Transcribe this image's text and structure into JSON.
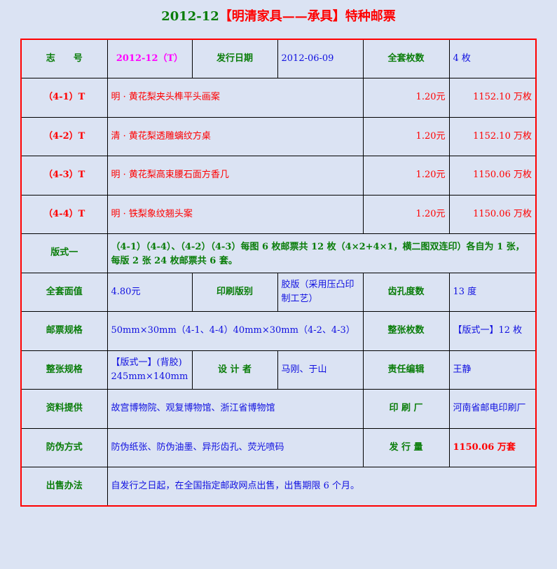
{
  "title": {
    "issue": "2012-12",
    "name": "【明清家具——承具】特种邮票"
  },
  "header_row": {
    "id_label": "志　　号",
    "id_value": "2012-12（T）",
    "date_label": "发行日期",
    "date_value": "2012-06-09",
    "count_label": "全套枚数",
    "count_value": "4 枚"
  },
  "stamps": [
    {
      "code": "（4-1）T",
      "name": "明 · 黄花梨夹头榫平头画案",
      "face": "1.20元",
      "qty": "1152.10 万枚"
    },
    {
      "code": "（4-2）T",
      "name": "清 · 黄花梨透雕螭纹方桌",
      "face": "1.20元",
      "qty": "1152.10 万枚"
    },
    {
      "code": "（4-3）T",
      "name": "明 · 黄花梨高束腰石面方香几",
      "face": "1.20元",
      "qty": "1150.06 万枚"
    },
    {
      "code": "（4-4）T",
      "name": "明 · 铁梨象纹翘头案",
      "face": "1.20元",
      "qty": "1150.06 万枚"
    }
  ],
  "format": {
    "label": "版式一",
    "value": "（4-1）（4-4）、（4-2）（4-3）每图 6 枚邮票共 12 枚（4×2+4×1，横二图双连印）各自为 1 张，每版 2 张 24 枚邮票共 6 套。"
  },
  "row_face": {
    "label": "全套面值",
    "value": "4.80元",
    "print_label": "印刷版别",
    "print_value": "胶版（采用压凸印制工艺）",
    "perf_label": "齿孔度数",
    "perf_value": "13 度"
  },
  "row_size": {
    "label": "邮票规格",
    "value": "50mm×30mm（4-1、4-4）40mm×30mm（4-2、4-3）",
    "sheet_count_label": "整张枚数",
    "sheet_count_value": "【版式一】12 枚"
  },
  "row_sheet": {
    "label": "整张规格",
    "value_line1": "【版式一】(背胶)",
    "value_line2": "245mm×140mm",
    "designer_label": "设 计 者",
    "designer_value": "马刚、于山",
    "editor_label": "责任编辑",
    "editor_value": "王静"
  },
  "row_source": {
    "label": "资料提供",
    "value": "故宫博物院、观复博物馆、浙江省博物馆",
    "printer_label": "印 刷 厂",
    "printer_value": "河南省邮电印刷厂"
  },
  "row_security": {
    "label": "防伪方式",
    "value": "防伪纸张、防伪油墨、异形齿孔、荧光喷码",
    "volume_label": "发 行 量",
    "volume_value": "1150.06 万套"
  },
  "row_sale": {
    "label": "出售办法",
    "value": "自发行之日起，在全国指定邮政网点出售，出售期限 6 个月。"
  }
}
